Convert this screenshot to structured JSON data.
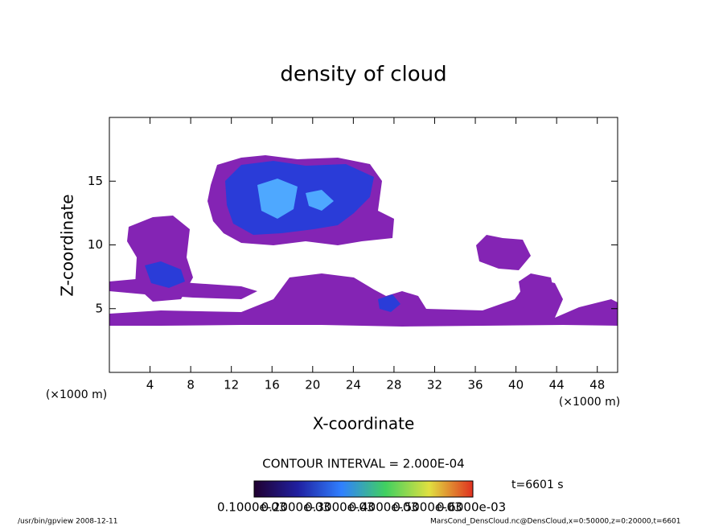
{
  "chart_data": {
    "type": "contour",
    "title": "density of cloud",
    "xlabel": "X-coordinate",
    "ylabel": "Z-coordinate",
    "x_unit_labels": [
      "(×1000 m)",
      "(×1000 m)"
    ],
    "xlim": [
      0,
      50
    ],
    "xticks": [
      4,
      8,
      12,
      16,
      20,
      24,
      28,
      32,
      36,
      40,
      44,
      48
    ],
    "ylim": [
      0,
      20
    ],
    "yticks": [
      5,
      10,
      15
    ],
    "contour_interval": "CONTOUR INTERVAL = 2.000E-04",
    "colorbar_labels": [
      "0.1000e-03",
      "0.2000e-03",
      "0.3000e-03",
      "0.4000e-03",
      "0.5000e-03",
      "0.6000e-03"
    ],
    "time_label": "t=6601 s",
    "footer_left": "/usr/bin/gpview   2008-12-11",
    "footer_right": "MarsCond_DensCloud.nc@DensCloud,x=0:50000,z=0:20000,t=6601"
  }
}
